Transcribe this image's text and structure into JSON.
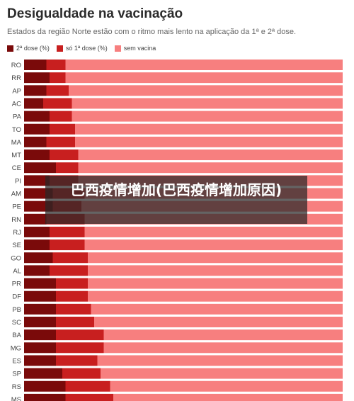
{
  "header": {
    "title": "Desigualdade na vacinação",
    "subtitle": "Estados da região Norte estão com o ritmo mais lento na aplicação da 1ª e 2ª dose."
  },
  "legend": [
    {
      "label": "2ª dose (%)",
      "color": "#7a0a0a"
    },
    {
      "label": "só 1ª dose (%)",
      "color": "#c81f1f"
    },
    {
      "label": "sem vacina",
      "color": "#f77f7f"
    }
  ],
  "overlay": {
    "text": "巴西疫情增加(巴西疫情增加原因)"
  },
  "chart_data": {
    "type": "bar",
    "orientation": "horizontal",
    "stacked": true,
    "xlim": [
      0,
      100
    ],
    "categories": [
      "RO",
      "RR",
      "AP",
      "AC",
      "PA",
      "TO",
      "MA",
      "MT",
      "CE",
      "PI",
      "AM",
      "PE",
      "RN",
      "RJ",
      "SE",
      "GO",
      "AL",
      "PR",
      "DF",
      "PB",
      "SC",
      "BA",
      "MG",
      "ES",
      "SP",
      "RS",
      "MS"
    ],
    "series": [
      {
        "name": "2ª dose (%)",
        "color": "#7a0a0a",
        "values": [
          7,
          8,
          7,
          6,
          8,
          8,
          7,
          8,
          10,
          8,
          9,
          9,
          7,
          8,
          8,
          9,
          8,
          10,
          10,
          10,
          10,
          10,
          10,
          10,
          12,
          13,
          13
        ]
      },
      {
        "name": "só 1ª dose (%)",
        "color": "#c81f1f",
        "values": [
          6,
          5,
          7,
          9,
          7,
          8,
          9,
          9,
          7,
          9,
          10,
          9,
          12,
          11,
          11,
          11,
          12,
          10,
          10,
          11,
          12,
          15,
          15,
          13,
          12,
          14,
          15
        ]
      },
      {
        "name": "sem vacina",
        "color": "#f77f7f",
        "values": [
          87,
          87,
          86,
          85,
          85,
          84,
          84,
          83,
          83,
          83,
          81,
          82,
          81,
          81,
          81,
          80,
          80,
          80,
          80,
          79,
          78,
          75,
          75,
          77,
          76,
          73,
          72
        ]
      }
    ]
  }
}
